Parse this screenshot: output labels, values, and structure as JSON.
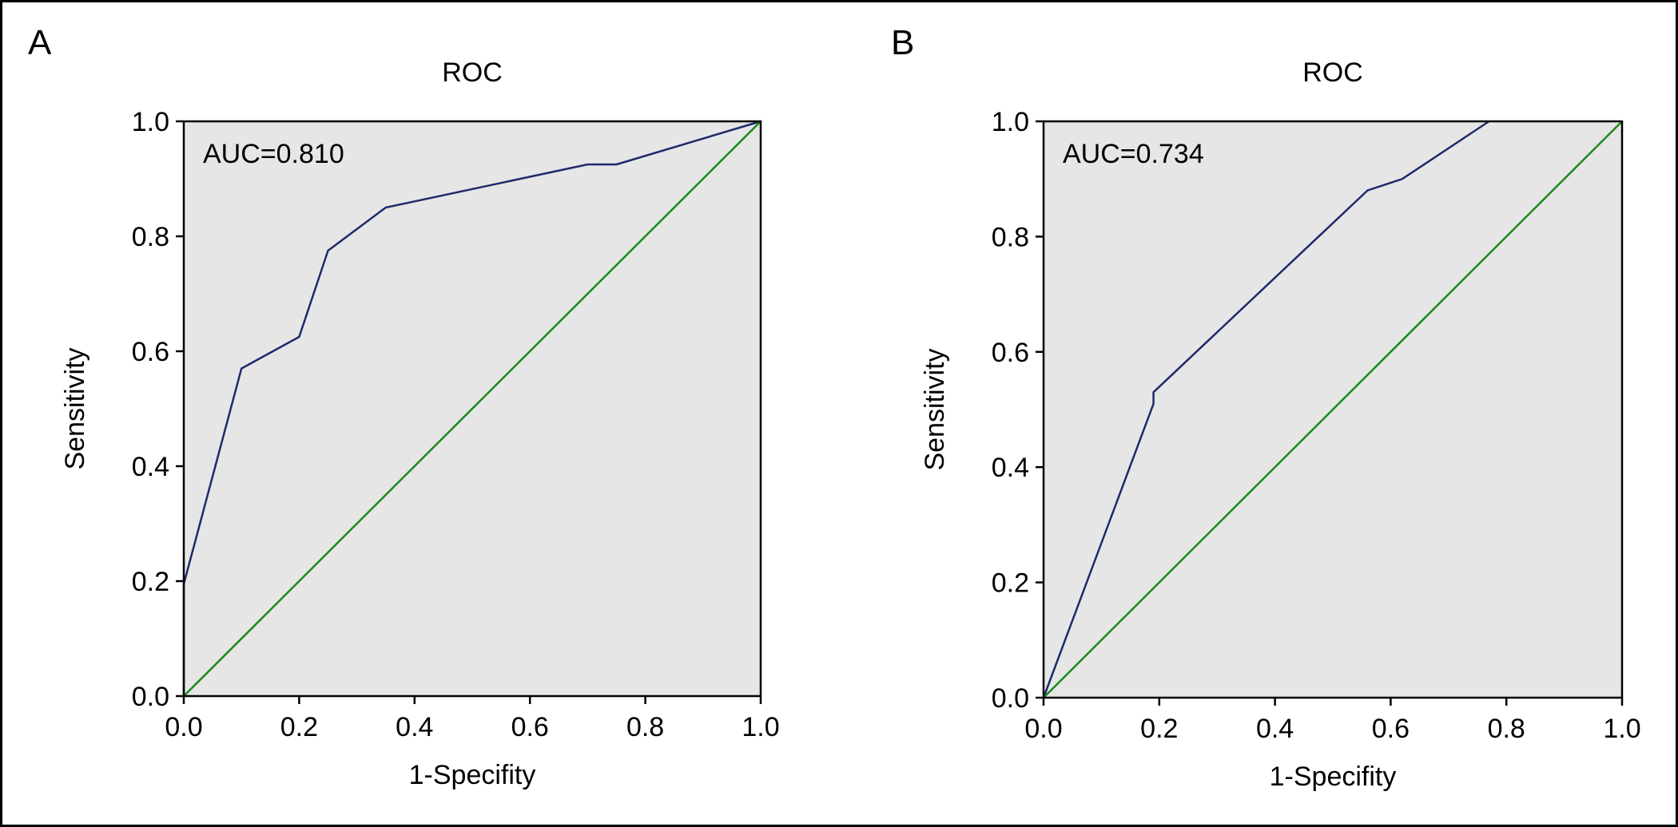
{
  "figure": {
    "panels": [
      "A",
      "B"
    ]
  },
  "chart_data": [
    {
      "panel_label": "A",
      "type": "line",
      "title": "ROC",
      "xlabel": "1-Specifity",
      "ylabel": "Sensitivity",
      "xlim": [
        0,
        1
      ],
      "ylim": [
        0,
        1
      ],
      "x_ticks": [
        "0.0",
        "0.2",
        "0.4",
        "0.6",
        "0.8",
        "1.0"
      ],
      "y_ticks": [
        "0.0",
        "0.2",
        "0.4",
        "0.6",
        "0.8",
        "1.0"
      ],
      "annotation": "AUC=0.810",
      "grid": false,
      "background": "#e6e6e6",
      "series": [
        {
          "color": "#1f2a6b",
          "x": [
            0.0,
            0.0,
            0.1,
            0.2,
            0.25,
            0.35,
            0.7,
            0.75,
            1.0
          ],
          "y": [
            0.0,
            0.195,
            0.57,
            0.625,
            0.775,
            0.85,
            0.925,
            0.925,
            1.0
          ]
        },
        {
          "color": "#1a8a1a",
          "x": [
            0.0,
            1.0
          ],
          "y": [
            0.0,
            1.0
          ]
        }
      ]
    },
    {
      "panel_label": "B",
      "type": "line",
      "title": "ROC",
      "xlabel": "1-Specifity",
      "ylabel": "Sensitivity",
      "xlim": [
        0,
        1
      ],
      "ylim": [
        0,
        1
      ],
      "x_ticks": [
        "0.0",
        "0.2",
        "0.4",
        "0.6",
        "0.8",
        "1.0"
      ],
      "y_ticks": [
        "0.0",
        "0.2",
        "0.4",
        "0.6",
        "0.8",
        "1.0"
      ],
      "annotation": "AUC=0.734",
      "grid": false,
      "background": "#e6e6e6",
      "series": [
        {
          "color": "#1f2a6b",
          "x": [
            0.0,
            0.19,
            0.19,
            0.56,
            0.62,
            0.77
          ],
          "y": [
            0.0,
            0.51,
            0.53,
            0.88,
            0.9,
            1.0
          ]
        },
        {
          "color": "#1a8a1a",
          "x": [
            0.0,
            1.0
          ],
          "y": [
            0.0,
            1.0
          ]
        }
      ]
    }
  ]
}
